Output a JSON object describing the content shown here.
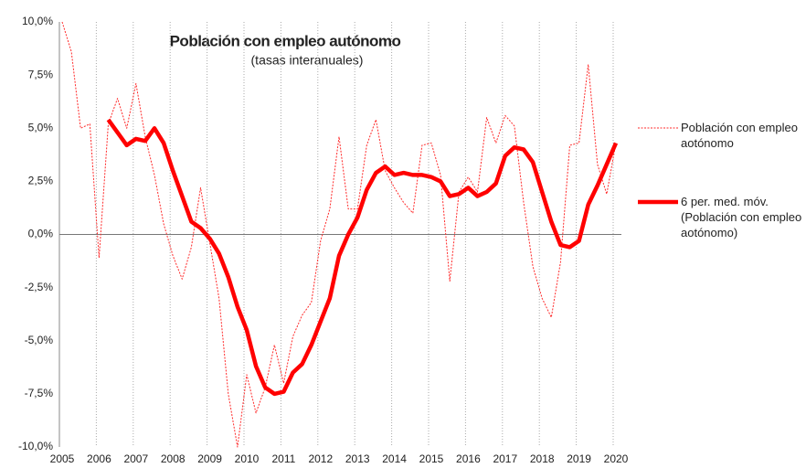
{
  "chart_data": {
    "type": "line",
    "title": "Población con empleo autónomo",
    "subtitle": "(tasas interanuales)",
    "categories": [
      "2005",
      null,
      null,
      null,
      "2006",
      null,
      null,
      null,
      "2007",
      null,
      null,
      null,
      "2008",
      null,
      null,
      null,
      "2009",
      null,
      null,
      null,
      "2010",
      null,
      null,
      null,
      "2011",
      null,
      null,
      null,
      "2012",
      null,
      null,
      null,
      "2013",
      null,
      null,
      null,
      "2014",
      null,
      null,
      null,
      "2015",
      null,
      null,
      null,
      "2016",
      null,
      null,
      null,
      "2017",
      null,
      null,
      null,
      "2018",
      null,
      null,
      null,
      "2019",
      null,
      null,
      null,
      "2020"
    ],
    "series": [
      {
        "name": "Población con empleo aotónomo",
        "color": "#ff2a2a",
        "values": [
          10.0,
          8.6,
          5.0,
          5.2,
          -1.1,
          5.2,
          6.4,
          5.0,
          7.1,
          4.6,
          2.8,
          0.5,
          -1.0,
          -2.1,
          -0.6,
          2.2,
          -0.4,
          -3.0,
          -7.5,
          -10.0,
          -6.6,
          -8.4,
          -7.2,
          -5.2,
          -7.0,
          -4.8,
          -3.8,
          -3.2,
          -0.3,
          1.2,
          4.6,
          1.2,
          1.2,
          4.2,
          5.4,
          3.0,
          2.2,
          1.5,
          1.0,
          4.2,
          4.3,
          2.8,
          -2.2,
          2.0,
          2.7,
          2.0,
          5.5,
          4.3,
          5.6,
          5.1,
          1.5,
          -1.5,
          -3.0,
          -3.9,
          -1.3,
          4.2,
          4.3,
          8.0,
          3.3,
          1.9,
          4.3
        ]
      },
      {
        "name": "6 per. med. móv. (Población con empleo aotónomo)",
        "color": "#ff0000",
        "values": [
          null,
          null,
          null,
          null,
          null,
          5.4,
          4.8,
          4.2,
          4.5,
          4.4,
          5.0,
          4.3,
          3.0,
          1.8,
          0.6,
          0.3,
          -0.2,
          -0.9,
          -2.0,
          -3.4,
          -4.5,
          -6.2,
          -7.2,
          -7.5,
          -7.4,
          -6.5,
          -6.1,
          -5.2,
          -4.1,
          -3.0,
          -1.0,
          0.0,
          0.8,
          2.1,
          2.9,
          3.2,
          2.8,
          2.9,
          2.8,
          2.8,
          2.7,
          2.5,
          1.8,
          1.9,
          2.2,
          1.8,
          2.0,
          2.4,
          3.7,
          4.1,
          4.0,
          3.4,
          2.0,
          0.6,
          -0.5,
          -0.6,
          -0.3,
          1.4,
          2.3,
          3.3,
          4.3
        ]
      }
    ],
    "ylim": [
      -10,
      10
    ],
    "yticks": [
      {
        "value": -10,
        "label": "-10,0%"
      },
      {
        "value": -7.5,
        "label": "-7,5%"
      },
      {
        "value": -5,
        "label": "-5,0%"
      },
      {
        "value": -2.5,
        "label": "-2,5%"
      },
      {
        "value": 0,
        "label": "0,0%"
      },
      {
        "value": 2.5,
        "label": "2,5%"
      },
      {
        "value": 5,
        "label": "5,0%"
      },
      {
        "value": 7.5,
        "label": "7,5%"
      },
      {
        "value": 10,
        "label": "10,0%"
      }
    ],
    "grid": true
  }
}
